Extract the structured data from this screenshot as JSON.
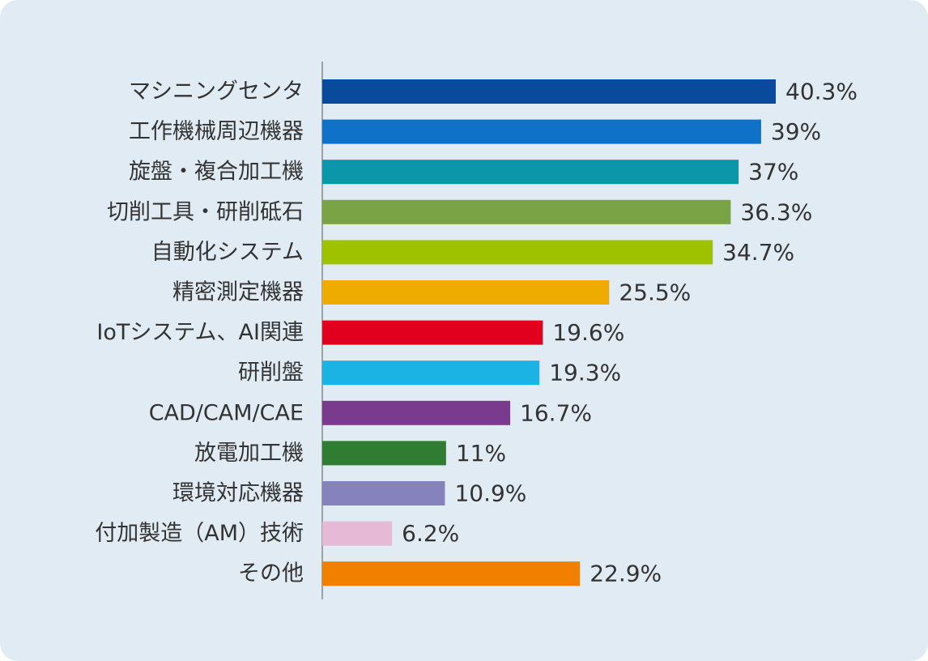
{
  "chart_data": {
    "type": "bar",
    "orientation": "horizontal",
    "title": "",
    "xlabel": "",
    "ylabel": "",
    "value_suffix": "%",
    "xlim": [
      0,
      44
    ],
    "grid": false,
    "legend": "none",
    "categories": [
      "マシニングセンタ",
      "工作機械周辺機器",
      "旋盤・複合加工機",
      "切削工具・研削砥石",
      "自動化システム",
      "精密測定機器",
      "IoTシステム、AI関連",
      "研削盤",
      "CAD/CAM/CAE",
      "放電加工機",
      "環境対応機器",
      "付加製造（AM）技術",
      "その他"
    ],
    "values": [
      40.3,
      39,
      37,
      36.3,
      34.7,
      25.5,
      19.6,
      19.3,
      16.7,
      11,
      10.9,
      6.2,
      22.9
    ],
    "value_labels": [
      "40.3%",
      "39%",
      "37%",
      "36.3%",
      "34.7%",
      "25.5%",
      "19.6%",
      "19.3%",
      "16.7%",
      "11%",
      "10.9%",
      "6.2%",
      "22.9%"
    ],
    "colors": [
      "#0a4a9c",
      "#0f72c8",
      "#0b96aa",
      "#7aa345",
      "#9ec200",
      "#eeac00",
      "#e2001f",
      "#1ab3e4",
      "#7a3a8e",
      "#2e7d32",
      "#8682be",
      "#e6b9d6",
      "#f18000"
    ],
    "background_color": "#e1ebf4",
    "axis_color": "#888888",
    "text_color": "#333333"
  }
}
